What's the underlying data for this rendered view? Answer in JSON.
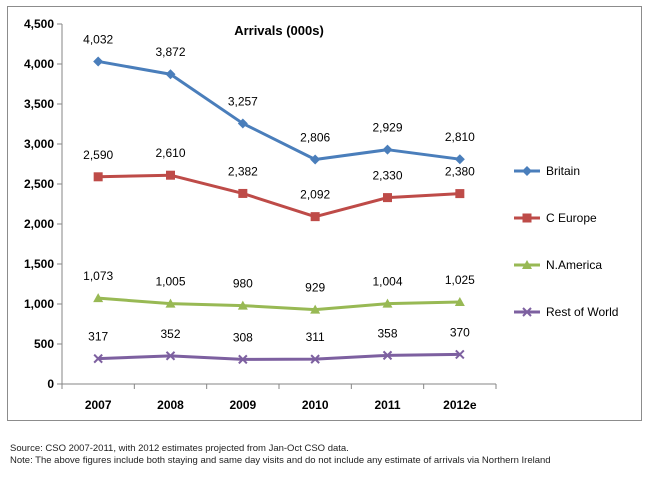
{
  "chart_data": {
    "type": "line",
    "title": "Arrivals (000s)",
    "categories": [
      "2007",
      "2008",
      "2009",
      "2010",
      "2011",
      "2012e"
    ],
    "ylim": [
      0,
      4500
    ],
    "yticks": [
      "0",
      "500",
      "1,000",
      "1,500",
      "2,000",
      "2,500",
      "3,000",
      "3,500",
      "4,000",
      "4,500"
    ],
    "ytick_values": [
      0,
      500,
      1000,
      1500,
      2000,
      2500,
      3000,
      3500,
      4000,
      4500
    ],
    "grid": false,
    "legend_position": "right",
    "series": [
      {
        "name": "Britain",
        "values": [
          4032,
          3872,
          3257,
          2806,
          2929,
          2810
        ],
        "labels": [
          "4,032",
          "3,872",
          "3,257",
          "2,806",
          "2,929",
          "2,810"
        ],
        "color": "#4a7ebb",
        "marker": "diamond"
      },
      {
        "name": "C Europe",
        "values": [
          2590,
          2610,
          2382,
          2092,
          2330,
          2380
        ],
        "labels": [
          "2,590",
          "2,610",
          "2,382",
          "2,092",
          "2,330",
          "2,380"
        ],
        "color": "#be4b48",
        "marker": "square"
      },
      {
        "name": "N.America",
        "values": [
          1073,
          1005,
          980,
          929,
          1004,
          1025
        ],
        "labels": [
          "1,073",
          "1,005",
          "980",
          "929",
          "1,004",
          "1,025"
        ],
        "color": "#98b954",
        "marker": "triangle"
      },
      {
        "name": "Rest of World",
        "values": [
          317,
          352,
          308,
          311,
          358,
          370
        ],
        "labels": [
          "317",
          "352",
          "308",
          "311",
          "358",
          "370"
        ],
        "color": "#7d60a0",
        "marker": "x"
      }
    ]
  },
  "notes": {
    "source": "Source: CSO 2007-2011, with 2012 estimates projected from Jan-Oct CSO data.",
    "note": "Note: The above figures include both staying and same day visits and do not include any estimate of arrivals via Northern Ireland"
  }
}
